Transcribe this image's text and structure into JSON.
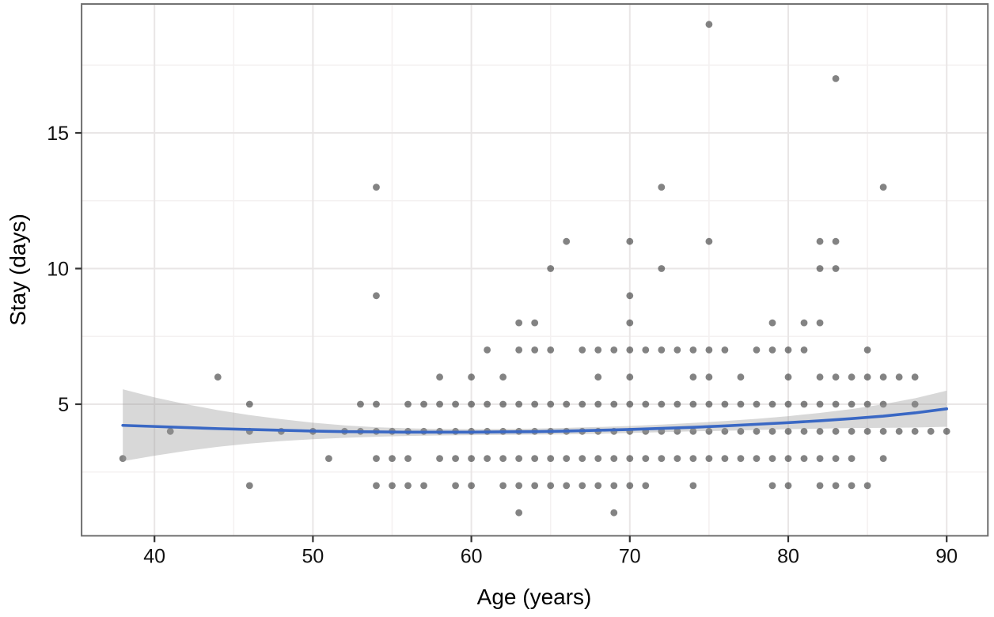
{
  "figure": {
    "xlabel": "Age (years)",
    "ylabel": "Stay (days)"
  },
  "chart_data": {
    "type": "scatter",
    "title": "",
    "xlabel": "Age (years)",
    "ylabel": "Stay (days)",
    "x_ticks": [
      40,
      50,
      60,
      70,
      80,
      90
    ],
    "x_minor_gridlines": [
      45,
      55,
      65,
      75,
      85
    ],
    "y_ticks": [
      5,
      10,
      15
    ],
    "y_minor_gridlines": [
      2.5,
      7.5,
      12.5,
      17.5
    ],
    "xlim": [
      35.4,
      92.6
    ],
    "ylim": [
      0.15,
      19.75
    ],
    "grid": "major and minor light-gray gridlines on white panel, gray panel border",
    "legend": "none",
    "points": [
      [
        63,
        1
      ],
      [
        69,
        1
      ],
      [
        46,
        2
      ],
      [
        54,
        2
      ],
      [
        55,
        2
      ],
      [
        56,
        2
      ],
      [
        57,
        2
      ],
      [
        59,
        2
      ],
      [
        60,
        2
      ],
      [
        62,
        2
      ],
      [
        63,
        2
      ],
      [
        64,
        2
      ],
      [
        65,
        2
      ],
      [
        66,
        2
      ],
      [
        67,
        2
      ],
      [
        68,
        2
      ],
      [
        69,
        2
      ],
      [
        70,
        2
      ],
      [
        71,
        2
      ],
      [
        74,
        2
      ],
      [
        79,
        2
      ],
      [
        80,
        2
      ],
      [
        82,
        2
      ],
      [
        83,
        2
      ],
      [
        84,
        2
      ],
      [
        85,
        2
      ],
      [
        38,
        3
      ],
      [
        51,
        3
      ],
      [
        54,
        3
      ],
      [
        55,
        3
      ],
      [
        56,
        3
      ],
      [
        58,
        3
      ],
      [
        59,
        3
      ],
      [
        60,
        3
      ],
      [
        61,
        3
      ],
      [
        62,
        3
      ],
      [
        63,
        3
      ],
      [
        64,
        3
      ],
      [
        65,
        3
      ],
      [
        66,
        3
      ],
      [
        67,
        3
      ],
      [
        68,
        3
      ],
      [
        69,
        3
      ],
      [
        70,
        3
      ],
      [
        71,
        3
      ],
      [
        72,
        3
      ],
      [
        73,
        3
      ],
      [
        74,
        3
      ],
      [
        75,
        3
      ],
      [
        76,
        3
      ],
      [
        77,
        3
      ],
      [
        78,
        3
      ],
      [
        79,
        3
      ],
      [
        80,
        3
      ],
      [
        81,
        3
      ],
      [
        82,
        3
      ],
      [
        83,
        3
      ],
      [
        84,
        3
      ],
      [
        86,
        3
      ],
      [
        41,
        4
      ],
      [
        46,
        4
      ],
      [
        48,
        4
      ],
      [
        50,
        4
      ],
      [
        52,
        4
      ],
      [
        53,
        4
      ],
      [
        54,
        4
      ],
      [
        55,
        4
      ],
      [
        56,
        4
      ],
      [
        57,
        4
      ],
      [
        58,
        4
      ],
      [
        59,
        4
      ],
      [
        60,
        4
      ],
      [
        61,
        4
      ],
      [
        62,
        4
      ],
      [
        63,
        4
      ],
      [
        64,
        4
      ],
      [
        65,
        4
      ],
      [
        66,
        4
      ],
      [
        67,
        4
      ],
      [
        68,
        4
      ],
      [
        69,
        4
      ],
      [
        70,
        4
      ],
      [
        71,
        4
      ],
      [
        72,
        4
      ],
      [
        73,
        4
      ],
      [
        74,
        4
      ],
      [
        75,
        4
      ],
      [
        76,
        4
      ],
      [
        77,
        4
      ],
      [
        78,
        4
      ],
      [
        79,
        4
      ],
      [
        80,
        4
      ],
      [
        81,
        4
      ],
      [
        82,
        4
      ],
      [
        83,
        4
      ],
      [
        84,
        4
      ],
      [
        85,
        4
      ],
      [
        86,
        4
      ],
      [
        87,
        4
      ],
      [
        88,
        4
      ],
      [
        89,
        4
      ],
      [
        90,
        4
      ],
      [
        46,
        5
      ],
      [
        53,
        5
      ],
      [
        54,
        5
      ],
      [
        56,
        5
      ],
      [
        57,
        5
      ],
      [
        58,
        5
      ],
      [
        59,
        5
      ],
      [
        60,
        5
      ],
      [
        61,
        5
      ],
      [
        62,
        5
      ],
      [
        63,
        5
      ],
      [
        64,
        5
      ],
      [
        65,
        5
      ],
      [
        66,
        5
      ],
      [
        67,
        5
      ],
      [
        68,
        5
      ],
      [
        69,
        5
      ],
      [
        70,
        5
      ],
      [
        71,
        5
      ],
      [
        72,
        5
      ],
      [
        73,
        5
      ],
      [
        74,
        5
      ],
      [
        75,
        5
      ],
      [
        76,
        5
      ],
      [
        77,
        5
      ],
      [
        78,
        5
      ],
      [
        79,
        5
      ],
      [
        80,
        5
      ],
      [
        81,
        5
      ],
      [
        82,
        5
      ],
      [
        83,
        5
      ],
      [
        84,
        5
      ],
      [
        85,
        5
      ],
      [
        86,
        5
      ],
      [
        88,
        5
      ],
      [
        44,
        6
      ],
      [
        58,
        6
      ],
      [
        60,
        6
      ],
      [
        62,
        6
      ],
      [
        68,
        6
      ],
      [
        70,
        6
      ],
      [
        74,
        6
      ],
      [
        75,
        6
      ],
      [
        77,
        6
      ],
      [
        80,
        6
      ],
      [
        82,
        6
      ],
      [
        83,
        6
      ],
      [
        84,
        6
      ],
      [
        85,
        6
      ],
      [
        86,
        6
      ],
      [
        87,
        6
      ],
      [
        88,
        6
      ],
      [
        61,
        7
      ],
      [
        63,
        7
      ],
      [
        64,
        7
      ],
      [
        65,
        7
      ],
      [
        67,
        7
      ],
      [
        68,
        7
      ],
      [
        69,
        7
      ],
      [
        70,
        7
      ],
      [
        71,
        7
      ],
      [
        72,
        7
      ],
      [
        73,
        7
      ],
      [
        74,
        7
      ],
      [
        75,
        7
      ],
      [
        76,
        7
      ],
      [
        78,
        7
      ],
      [
        79,
        7
      ],
      [
        80,
        7
      ],
      [
        81,
        7
      ],
      [
        85,
        7
      ],
      [
        63,
        8
      ],
      [
        64,
        8
      ],
      [
        70,
        8
      ],
      [
        79,
        8
      ],
      [
        81,
        8
      ],
      [
        82,
        8
      ],
      [
        54,
        9
      ],
      [
        70,
        9
      ],
      [
        65,
        10
      ],
      [
        72,
        10
      ],
      [
        82,
        10
      ],
      [
        83,
        10
      ],
      [
        66,
        11
      ],
      [
        70,
        11
      ],
      [
        75,
        11
      ],
      [
        82,
        11
      ],
      [
        83,
        11
      ],
      [
        54,
        13
      ],
      [
        72,
        13
      ],
      [
        86,
        13
      ],
      [
        83,
        17
      ],
      [
        75,
        19
      ]
    ],
    "smooth": {
      "label": "loess fit with 95% confidence band",
      "x": [
        38,
        40,
        42,
        44,
        46,
        48,
        50,
        52,
        54,
        56,
        58,
        60,
        62,
        64,
        66,
        68,
        70,
        72,
        74,
        76,
        78,
        80,
        82,
        84,
        86,
        88,
        90
      ],
      "y": [
        4.22,
        4.18,
        4.14,
        4.1,
        4.07,
        4.04,
        4.01,
        3.99,
        3.98,
        3.97,
        3.97,
        3.97,
        3.98,
        3.99,
        4.01,
        4.04,
        4.07,
        4.11,
        4.15,
        4.2,
        4.26,
        4.32,
        4.39,
        4.47,
        4.56,
        4.68,
        4.83
      ],
      "ci_upper": [
        5.55,
        5.25,
        5.0,
        4.78,
        4.6,
        4.45,
        4.32,
        4.22,
        4.15,
        4.11,
        4.09,
        4.08,
        4.09,
        4.1,
        4.13,
        4.16,
        4.2,
        4.25,
        4.31,
        4.38,
        4.46,
        4.56,
        4.68,
        4.82,
        5.0,
        5.22,
        5.5
      ],
      "ci_lower": [
        2.9,
        3.1,
        3.28,
        3.43,
        3.55,
        3.64,
        3.71,
        3.76,
        3.8,
        3.83,
        3.85,
        3.86,
        3.87,
        3.88,
        3.89,
        3.91,
        3.94,
        3.97,
        4.0,
        4.02,
        4.05,
        4.08,
        4.1,
        4.12,
        4.13,
        4.14,
        4.17
      ]
    },
    "style": {
      "point_color": "#1e1e1e",
      "point_opacity": 0.55,
      "point_radius": 4.4,
      "line_color": "#3a68c4",
      "band_color": "#999999",
      "band_opacity": 0.38,
      "grid_major_color": "#e9e6e6",
      "grid_minor_color": "#f4f1f1",
      "border_color": "#6e6e6e",
      "tick_color": "#333333",
      "background": "#ffffff"
    }
  }
}
